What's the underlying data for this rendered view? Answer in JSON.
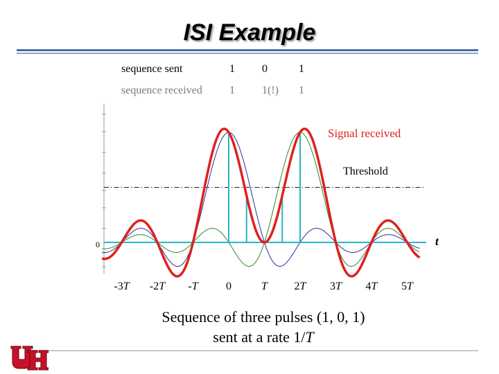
{
  "slide": {
    "title": "ISI Example",
    "caption_line1": "Sequence of three pulses (1, 0, 1)",
    "caption_line2_prefix": "sent at a rate 1/",
    "caption_line2_var": "T"
  },
  "sequence": {
    "sent_label": "sequence sent",
    "sent_bits": [
      "1",
      "0",
      "1"
    ],
    "received_label": "sequence received",
    "received_bits": [
      "1",
      "1(!)",
      "1"
    ]
  },
  "chart_data": {
    "type": "line",
    "x_ticks": [
      "-3T",
      "-2T",
      "-T",
      "0",
      "T",
      "2T",
      "3T",
      "4T",
      "5T"
    ],
    "x_tick_values": [
      -3,
      -2,
      -1,
      0,
      1,
      2,
      3,
      4,
      5
    ],
    "y_origin_label": "0",
    "x_axis_var": "t",
    "annotations": [
      "Signal received",
      "Threshold"
    ],
    "threshold": 0.5,
    "pulse_centers": [
      0,
      2
    ],
    "series": [
      {
        "name": "Signal received",
        "color": "#e0201c",
        "formula": "sinc(t)+sinc(t-2)"
      },
      {
        "color": "#2d2d9c",
        "formula": "sinc(t)"
      },
      {
        "color": "#2a8a2a",
        "formula": "sinc(t-2)"
      }
    ],
    "sample_times": [
      -3,
      -2,
      -1,
      0,
      0.5,
      1,
      1.5,
      2,
      3,
      4,
      5
    ],
    "colors": {
      "axis": "#27b6c4",
      "threshold": "#222222"
    }
  },
  "logo": {
    "text": "UH",
    "color": "#c8102e"
  }
}
